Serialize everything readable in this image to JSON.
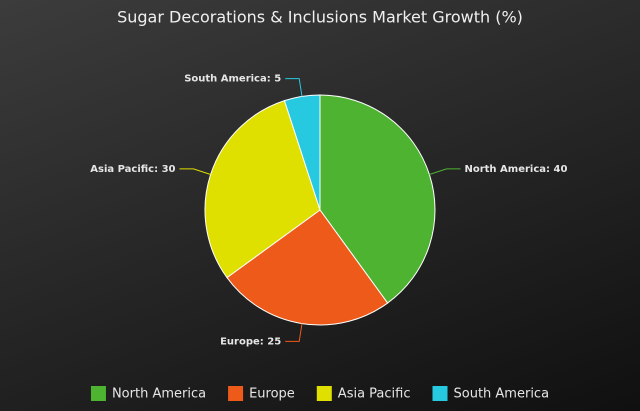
{
  "chart_data": {
    "type": "pie",
    "title": "Sugar Decorations & Inclusions Market Growth (%)",
    "categories": [
      "North America",
      "Europe",
      "Asia Pacific",
      "South America"
    ],
    "values": [
      40,
      25,
      30,
      5
    ],
    "value_labels": [
      "North America: 40",
      "Europe: 25",
      "Asia Pacific: 30",
      "South America: 5"
    ],
    "colors": [
      "#4db331",
      "#ee5a1a",
      "#dfdf00",
      "#27c9e0"
    ],
    "legend": "bottom"
  }
}
